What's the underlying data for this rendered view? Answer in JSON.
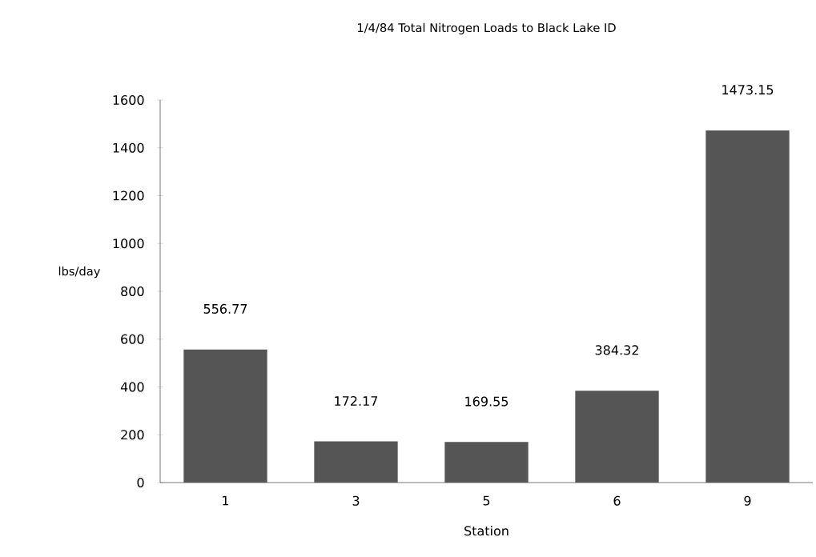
{
  "chart_data": {
    "type": "bar",
    "title": "1/4/84 Total Nitrogen Loads to Black Lake ID",
    "xlabel": "Station",
    "ylabel": "lbs/day",
    "categories": [
      "1",
      "3",
      "5",
      "6",
      "9"
    ],
    "values": [
      556.77,
      172.17,
      169.55,
      384.32,
      1473.15
    ],
    "color": "#555555",
    "data_labels": true,
    "ylim": [
      0,
      1600
    ],
    "yticks": [
      0,
      200,
      400,
      600,
      800,
      1000,
      1200,
      1400,
      1600
    ]
  }
}
